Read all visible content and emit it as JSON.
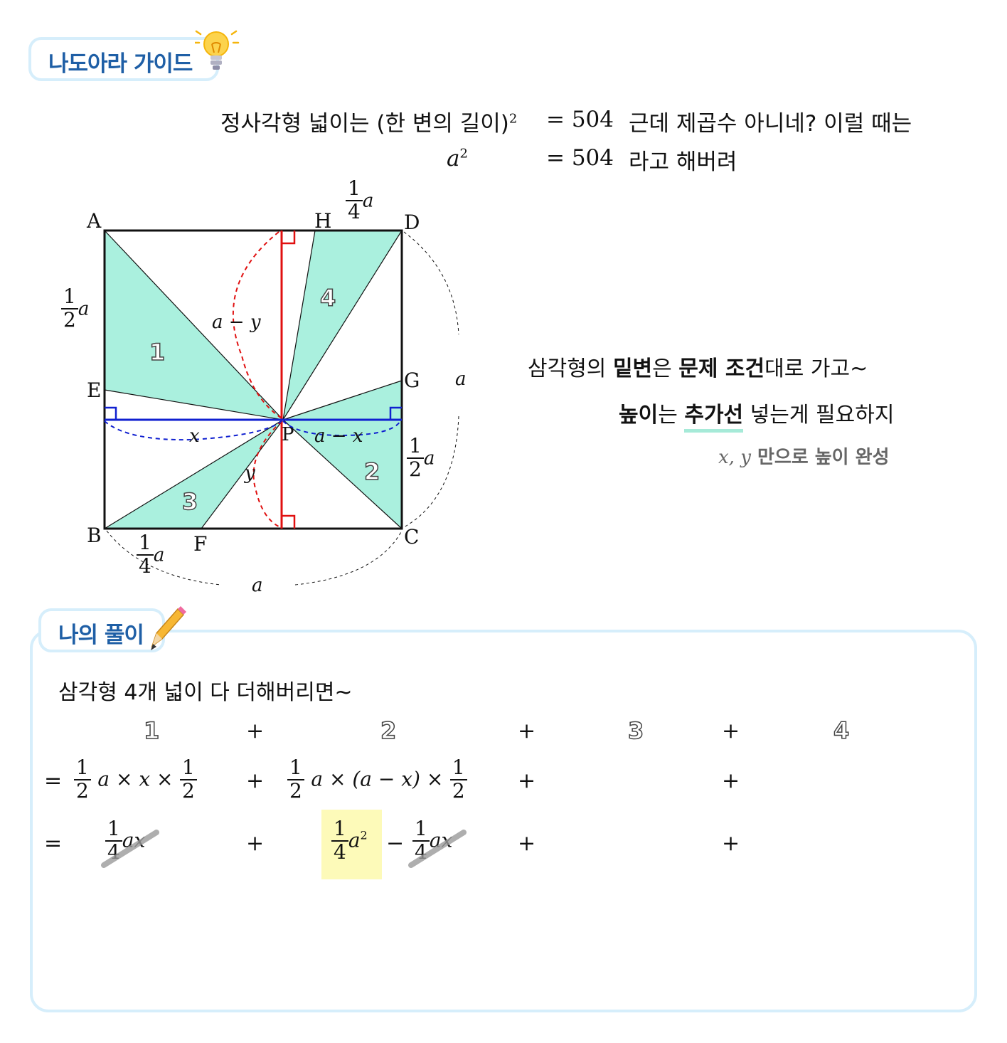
{
  "guide": {
    "title": "나도아라 가이드",
    "bulb_icon": "lightbulb-icon"
  },
  "intro": {
    "line1_prefix": "정사각형  넓이는 (한  변의  길이)",
    "line1_sup": "2",
    "line1_eq": "= 504",
    "line1_suffix": "근데  제곱수  아니네?   이럴  때는",
    "line2_var": "a",
    "line2_sup": "2",
    "line2_eq": "= 504",
    "line2_suffix": "라고  해버려"
  },
  "diagram": {
    "labels": {
      "A": "A",
      "B": "B",
      "C": "C",
      "D": "D",
      "E": "E",
      "F": "F",
      "G": "G",
      "H": "H",
      "P": "P",
      "a_minus_y": "a − y",
      "x": "x",
      "a_minus_x": "a − x",
      "y": "y",
      "a_right": "a",
      "a_bottom": "a",
      "frac_num": "1",
      "frac_den_2": "2",
      "frac_den_4": "4",
      "frac_var": "a",
      "region1": "1",
      "region2": "2",
      "region3": "3",
      "region4": "4"
    },
    "colors": {
      "fill": "#aaf0de",
      "red": "#e01010",
      "blue": "#1020d0"
    }
  },
  "hint": {
    "line1_a": "삼각형의 ",
    "line1_b": "밑변",
    "line1_c": "은 ",
    "line1_d": "문제  조건",
    "line1_e": "대로  가고~",
    "line2_a": "높이",
    "line2_b": "는 ",
    "line2_c": "추가선",
    "line2_d": " 넣는게  필요하지",
    "line3_vars": "x,  y",
    "line3_text": " 만으로 높이 완성"
  },
  "solution": {
    "title": "나의 풀이",
    "pencil_icon": "pencil-icon",
    "intro": "삼각형  4개  넓이  다  더해버리면~",
    "row_labels": [
      "1",
      "+",
      "2",
      "+",
      "3",
      "+",
      "4"
    ],
    "row2": {
      "eq": "=",
      "t1_mid": "a × x ×",
      "plus": "+",
      "t2_mid": "a × (a − x) ×",
      "plus2": "+",
      "plus3": "+"
    },
    "row3": {
      "eq": "=",
      "t1_var": "ax",
      "plus": "+",
      "t2_var": "a",
      "t2_sup": "2",
      "minus": "−",
      "t3_var": "ax",
      "plus2": "+",
      "plus3": "+"
    },
    "frac": {
      "one": "1",
      "two": "2",
      "four": "4"
    },
    "highlight_color": "#fdfab9"
  }
}
